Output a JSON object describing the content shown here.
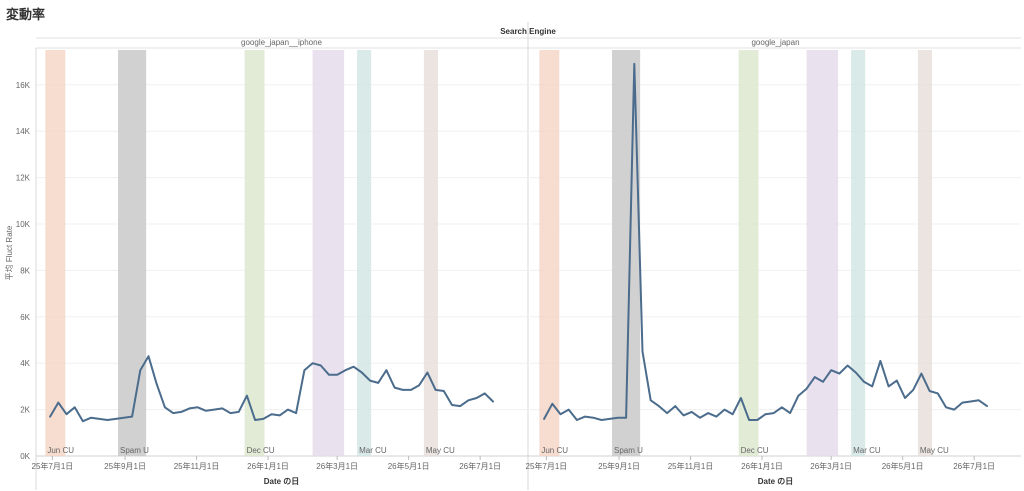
{
  "page_title": "変動率",
  "chart_data": {
    "type": "line",
    "header_title": "Search Engine",
    "ylabel": "平均 Fluct Rate",
    "xlabel": "Date の日",
    "ylim": [
      0,
      17500
    ],
    "yticks": [
      0,
      2000,
      4000,
      6000,
      8000,
      10000,
      12000,
      14000,
      16000
    ],
    "ytick_labels": [
      "0K",
      "2K",
      "4K",
      "6K",
      "8K",
      "10K",
      "12K",
      "14K",
      "16K"
    ],
    "xlim": [
      "2025-06-17",
      "2026-08-10"
    ],
    "xticks": [
      "2025-07-01",
      "2025-09-01",
      "2025-11-01",
      "2026-01-01",
      "2026-03-01",
      "2026-05-01",
      "2026-07-01"
    ],
    "xtick_labels": [
      "25年7月1日",
      "25年9月1日",
      "25年11月1日",
      "26年1月1日",
      "26年3月1日",
      "26年5月1日",
      "26年7月1日"
    ],
    "line_color": "#4b6c8c",
    "bands": [
      {
        "start": "2025-06-25",
        "end": "2025-07-12",
        "color": "#f6d6c8",
        "label": "Jun CU"
      },
      {
        "start": "2025-08-26",
        "end": "2025-09-19",
        "color": "#c9c9c9",
        "label": "Spam U"
      },
      {
        "start": "2025-12-12",
        "end": "2025-12-29",
        "color": "#dde8cf",
        "label": "Dec CU"
      },
      {
        "start": "2026-02-08",
        "end": "2026-03-07",
        "color": "#e6dcec",
        "label": ""
      },
      {
        "start": "2026-03-18",
        "end": "2026-03-30",
        "color": "#d3e6e4",
        "label": "Mar CU"
      },
      {
        "start": "2026-05-14",
        "end": "2026-05-26",
        "color": "#e8dfda",
        "label": "May CU"
      }
    ],
    "panels": [
      {
        "name": "google_japan__iphone",
        "x": [
          "2025-06-29",
          "2025-07-06",
          "2025-07-13",
          "2025-07-20",
          "2025-07-27",
          "2025-08-03",
          "2025-08-10",
          "2025-08-17",
          "2025-08-24",
          "2025-08-31",
          "2025-09-07",
          "2025-09-14",
          "2025-09-21",
          "2025-09-28",
          "2025-10-05",
          "2025-10-12",
          "2025-10-19",
          "2025-10-26",
          "2025-11-02",
          "2025-11-09",
          "2025-11-16",
          "2025-11-23",
          "2025-11-30",
          "2025-12-07",
          "2025-12-14",
          "2025-12-21",
          "2025-12-28",
          "2026-01-04",
          "2026-01-11",
          "2026-01-18",
          "2026-01-25",
          "2026-02-01",
          "2026-02-08",
          "2026-02-15",
          "2026-02-22",
          "2026-03-01",
          "2026-03-08",
          "2026-03-15",
          "2026-03-22",
          "2026-03-29",
          "2026-04-05",
          "2026-04-12",
          "2026-04-19",
          "2026-04-26",
          "2026-05-03",
          "2026-05-10",
          "2026-05-17",
          "2026-05-24",
          "2026-05-31",
          "2026-06-07",
          "2026-06-14",
          "2026-06-21",
          "2026-06-28",
          "2026-07-05",
          "2026-07-12"
        ],
        "y": [
          1700,
          2300,
          1800,
          2100,
          1500,
          1650,
          1600,
          1550,
          1600,
          1650,
          1700,
          3700,
          4300,
          3100,
          2100,
          1850,
          1900,
          2050,
          2100,
          1950,
          2000,
          2050,
          1850,
          1900,
          2600,
          1550,
          1600,
          1800,
          1750,
          2000,
          1850,
          3700,
          4000,
          3900,
          3500,
          3500,
          3700,
          3850,
          3600,
          3250,
          3150,
          3700,
          2950,
          2850,
          2850,
          3050,
          3600,
          2850,
          2800,
          2200,
          2150,
          2400,
          2500,
          2700,
          2350
        ]
      },
      {
        "name": "google_japan",
        "x": [
          "2025-06-29",
          "2025-07-06",
          "2025-07-13",
          "2025-07-20",
          "2025-07-27",
          "2025-08-03",
          "2025-08-10",
          "2025-08-17",
          "2025-08-24",
          "2025-08-31",
          "2025-09-07",
          "2025-09-14",
          "2025-09-21",
          "2025-09-28",
          "2025-10-05",
          "2025-10-12",
          "2025-10-19",
          "2025-10-26",
          "2025-11-02",
          "2025-11-09",
          "2025-11-16",
          "2025-11-23",
          "2025-11-30",
          "2025-12-07",
          "2025-12-14",
          "2025-12-21",
          "2025-12-28",
          "2026-01-04",
          "2026-01-11",
          "2026-01-18",
          "2026-01-25",
          "2026-02-01",
          "2026-02-08",
          "2026-02-15",
          "2026-02-22",
          "2026-03-01",
          "2026-03-08",
          "2026-03-15",
          "2026-03-22",
          "2026-03-29",
          "2026-04-05",
          "2026-04-12",
          "2026-04-19",
          "2026-04-26",
          "2026-05-03",
          "2026-05-10",
          "2026-05-17",
          "2026-05-24",
          "2026-05-31",
          "2026-06-07",
          "2026-06-14",
          "2026-06-21",
          "2026-06-28",
          "2026-07-05",
          "2026-07-12"
        ],
        "y": [
          1600,
          2250,
          1800,
          2000,
          1550,
          1700,
          1650,
          1550,
          1600,
          1650,
          1650,
          16900,
          4500,
          2400,
          2150,
          1850,
          2150,
          1750,
          1900,
          1650,
          1850,
          1700,
          2000,
          1800,
          2500,
          1550,
          1550,
          1800,
          1850,
          2100,
          1850,
          2600,
          2900,
          3400,
          3200,
          3700,
          3550,
          3900,
          3600,
          3200,
          3000,
          4100,
          3000,
          3250,
          2500,
          2850,
          3550,
          2800,
          2700,
          2100,
          2000,
          2300,
          2350,
          2400,
          2150
        ]
      }
    ]
  }
}
